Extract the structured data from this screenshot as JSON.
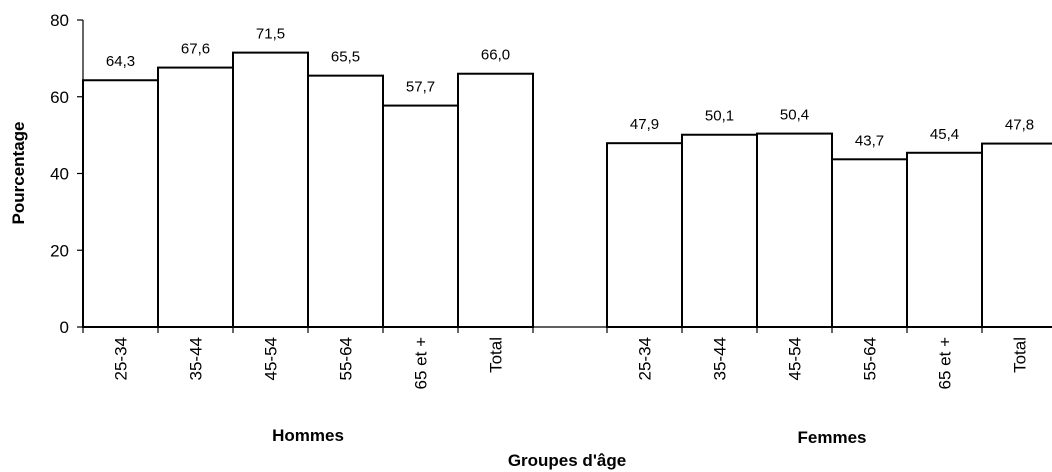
{
  "chart_data": {
    "type": "bar",
    "xlabel": "Groupes d'âge",
    "ylabel": "Pourcentage",
    "ylim": [
      0,
      80
    ],
    "yticks": [
      "0",
      "20",
      "40",
      "60",
      "80"
    ],
    "grid": false,
    "legend": "none",
    "bar_fill": "#ffffff",
    "bar_stroke": "#000000",
    "groups": [
      {
        "name": "Hommes",
        "categories": [
          "25-34",
          "35-44",
          "45-54",
          "55-64",
          "65 et +",
          "Total"
        ],
        "values": [
          64.3,
          67.6,
          71.5,
          65.5,
          57.7,
          66.0
        ],
        "labels": [
          "64,3",
          "67,6",
          "71,5",
          "65,5",
          "57,7",
          "66,0"
        ]
      },
      {
        "name": "Femmes",
        "categories": [
          "25-34",
          "35-44",
          "45-54",
          "55-64",
          "65 et +",
          "Total"
        ],
        "values": [
          47.9,
          50.1,
          50.4,
          43.7,
          45.4,
          47.8
        ],
        "labels": [
          "47,9",
          "50,1",
          "50,4",
          "43,7",
          "45,4",
          "47,8"
        ]
      }
    ]
  }
}
